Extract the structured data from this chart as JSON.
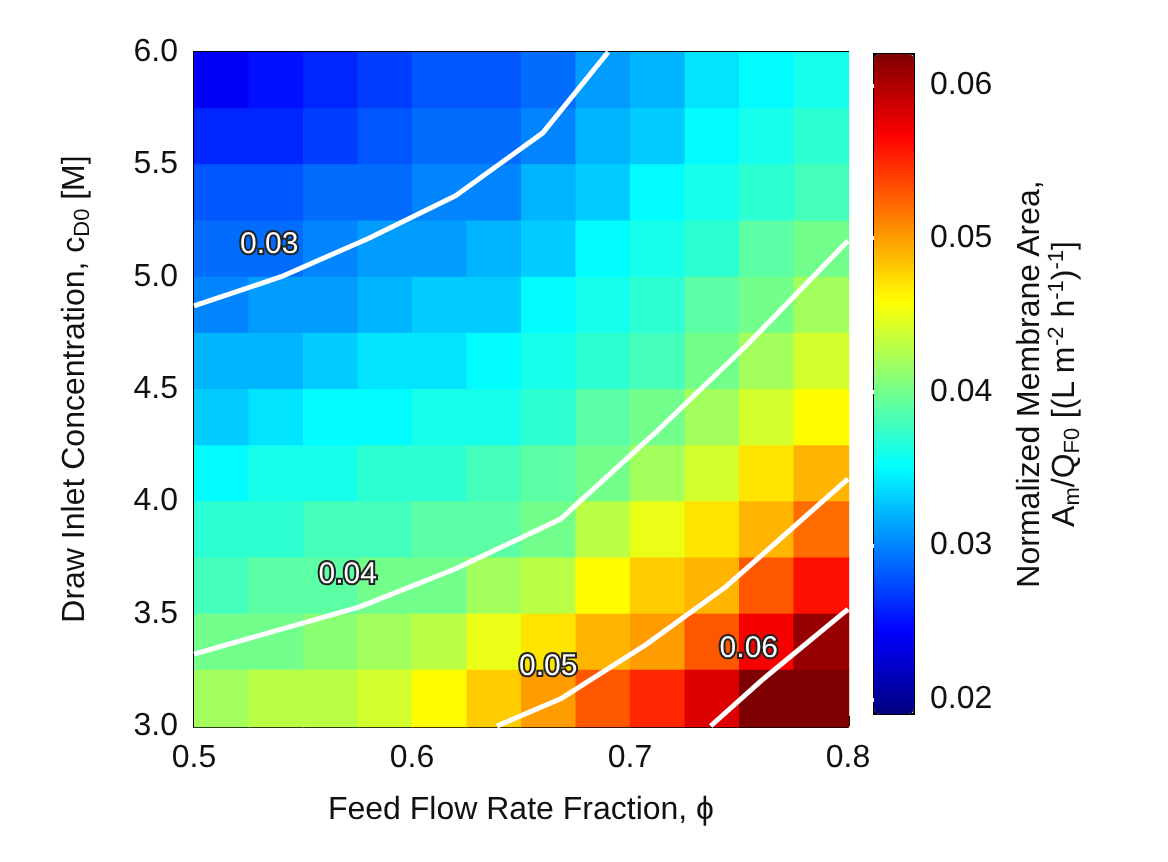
{
  "chart_data": {
    "type": "heatmap",
    "xlabel": "Feed Flow Rate Fraction, ϕ",
    "ylabel": "Draw Inlet Concentration, c$_{D0}$ [M]",
    "clabel": "Normalized Membrane Area, A$_{m}$/Q$_{F0}$ [(L m$^{-2}$ h$^{-1}$)$^{-1}$]",
    "x": [
      0.5125,
      0.5375,
      0.5625,
      0.5875,
      0.6125,
      0.6375,
      0.6625,
      0.6875,
      0.7125,
      0.7375,
      0.7625,
      0.7875
    ],
    "y": [
      5.875,
      5.625,
      5.375,
      5.125,
      4.875,
      4.625,
      4.375,
      4.125,
      3.875,
      3.625,
      3.375,
      3.125
    ],
    "cells": [
      [
        0.024,
        0.025,
        0.026,
        0.027,
        0.028,
        0.028,
        0.029,
        0.031,
        0.032,
        0.034,
        0.035,
        0.036
      ],
      [
        0.026,
        0.026,
        0.027,
        0.028,
        0.029,
        0.029,
        0.03,
        0.032,
        0.033,
        0.035,
        0.036,
        0.037
      ],
      [
        0.028,
        0.028,
        0.029,
        0.029,
        0.03,
        0.03,
        0.032,
        0.033,
        0.035,
        0.036,
        0.037,
        0.038
      ],
      [
        0.029,
        0.029,
        0.03,
        0.031,
        0.031,
        0.032,
        0.033,
        0.035,
        0.036,
        0.037,
        0.039,
        0.04
      ],
      [
        0.03,
        0.031,
        0.031,
        0.032,
        0.033,
        0.033,
        0.035,
        0.036,
        0.037,
        0.039,
        0.04,
        0.042
      ],
      [
        0.032,
        0.032,
        0.033,
        0.034,
        0.034,
        0.035,
        0.036,
        0.037,
        0.038,
        0.04,
        0.042,
        0.044
      ],
      [
        0.033,
        0.034,
        0.035,
        0.035,
        0.036,
        0.036,
        0.037,
        0.039,
        0.04,
        0.042,
        0.044,
        0.046
      ],
      [
        0.035,
        0.036,
        0.036,
        0.037,
        0.037,
        0.038,
        0.039,
        0.04,
        0.042,
        0.044,
        0.047,
        0.049
      ],
      [
        0.037,
        0.037,
        0.038,
        0.038,
        0.039,
        0.039,
        0.04,
        0.043,
        0.045,
        0.047,
        0.049,
        0.052
      ],
      [
        0.038,
        0.039,
        0.039,
        0.04,
        0.04,
        0.042,
        0.043,
        0.046,
        0.048,
        0.049,
        0.053,
        0.056
      ],
      [
        0.04,
        0.04,
        0.041,
        0.042,
        0.043,
        0.045,
        0.047,
        0.049,
        0.05,
        0.053,
        0.057,
        0.061
      ],
      [
        0.042,
        0.043,
        0.043,
        0.044,
        0.046,
        0.048,
        0.05,
        0.053,
        0.055,
        0.058,
        0.062,
        0.062
      ]
    ],
    "series": [
      {
        "type": "line",
        "name": "0.03",
        "color": "#ffffff",
        "x": [
          0.5,
          0.54,
          0.58,
          0.62,
          0.66,
          0.69
        ],
        "values": [
          4.87,
          5.0,
          5.17,
          5.36,
          5.64,
          6.0
        ]
      },
      {
        "type": "line",
        "name": "0.04",
        "color": "#ffffff",
        "x": [
          0.5,
          0.576,
          0.62,
          0.668,
          0.711,
          0.753,
          0.8
        ],
        "values": [
          3.32,
          3.53,
          3.7,
          3.92,
          4.3,
          4.69,
          5.16
        ]
      },
      {
        "type": "line",
        "name": "0.05",
        "color": "#ffffff",
        "x": [
          0.639,
          0.668,
          0.707,
          0.744,
          0.8
        ],
        "values": [
          3.0,
          3.12,
          3.36,
          3.62,
          4.1
        ]
      },
      {
        "type": "line",
        "name": "0.06",
        "color": "#ffffff",
        "x": [
          0.737,
          0.76,
          0.8
        ],
        "values": [
          3.0,
          3.2,
          3.52
        ]
      }
    ],
    "xlim": [
      0.5,
      0.8
    ],
    "xticks": [
      0.5,
      0.6,
      0.7,
      0.8
    ],
    "ylim": [
      3.0,
      6.0
    ],
    "yticks": [
      {
        "value": 3,
        "label": "3.0"
      },
      {
        "value": 3.5,
        "label": "3.5"
      },
      {
        "value": 4,
        "label": "4.0"
      },
      {
        "value": 4.5,
        "label": "4.5"
      },
      {
        "value": 5,
        "label": "5.0"
      },
      {
        "value": 5.5,
        "label": "5.5"
      },
      {
        "value": 6,
        "label": "6.0"
      }
    ],
    "clim": [
      0.019,
      0.062
    ],
    "cticks": [
      0.02,
      0.03,
      0.04,
      0.05,
      0.06
    ]
  }
}
